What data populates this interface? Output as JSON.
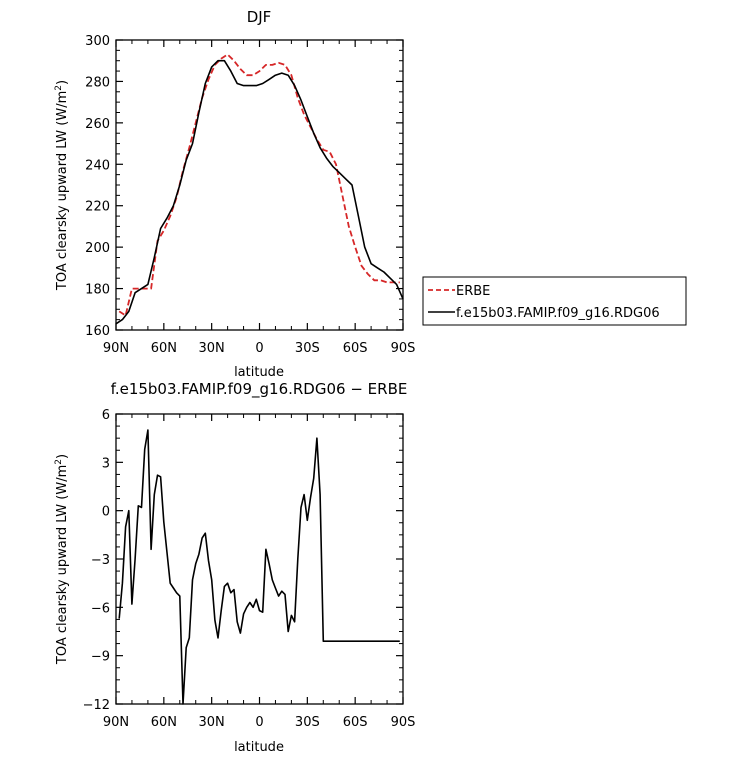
{
  "chart_data": [
    {
      "type": "line",
      "title": "DJF",
      "xlabel": "latitude",
      "ylabel": "TOA clearsky upward LW (W/m²)",
      "ylabel_parts": {
        "main": "TOA clearsky upward LW (W/m",
        "sup": "2",
        "close": ")"
      },
      "xlim": [
        90,
        -90
      ],
      "ylim": [
        160,
        300
      ],
      "xticks": [
        90,
        60,
        30,
        0,
        -30,
        -60,
        -90
      ],
      "xtick_labels": [
        "90N",
        "60N",
        "30N",
        "0",
        "30S",
        "60S",
        "90S"
      ],
      "yticks": [
        160,
        180,
        200,
        220,
        240,
        260,
        280,
        300
      ],
      "ytick_labels": [
        "160",
        "180",
        "200",
        "220",
        "240",
        "260",
        "280",
        "300"
      ],
      "legend_placement": "right",
      "series": [
        {
          "name": "ERBE",
          "color": "#d62728",
          "dash": "dashed",
          "x": [
            88,
            84,
            80,
            76,
            72,
            68,
            64,
            60,
            56,
            52,
            48,
            44,
            40,
            36,
            32,
            28,
            24,
            20,
            16,
            12,
            8,
            4,
            0,
            -4,
            -8,
            -12,
            -16,
            -20,
            -24,
            -28,
            -32,
            -36,
            -40,
            -44,
            -48,
            -52,
            -56,
            -60,
            -64,
            -68,
            -72,
            -76,
            -80,
            -84,
            -88
          ],
          "values": [
            169,
            167,
            180,
            180,
            180,
            180,
            203,
            208,
            215,
            224,
            237,
            248,
            260,
            272,
            281,
            288,
            291,
            293,
            290,
            286,
            283,
            283,
            285,
            288,
            288,
            289,
            288,
            283,
            272,
            264,
            258,
            252,
            247,
            246,
            240,
            225,
            210,
            200,
            191,
            187,
            184,
            184,
            183,
            183,
            183
          ]
        },
        {
          "name": "f.e15b03.FAMIP.f09_g16.RDG06",
          "color": "#000000",
          "dash": "solid",
          "x": [
            90,
            86,
            82,
            78,
            74,
            70,
            66,
            62,
            58,
            54,
            50,
            46,
            42,
            38,
            34,
            30,
            26,
            22,
            18,
            14,
            10,
            6,
            2,
            -2,
            -6,
            -10,
            -14,
            -18,
            -22,
            -26,
            -30,
            -34,
            -38,
            -42,
            -46,
            -50,
            -54,
            -58,
            -62,
            -66,
            -70,
            -74,
            -78,
            -82,
            -86,
            -90
          ],
          "values": [
            163,
            165,
            169,
            178,
            180,
            182,
            195,
            209,
            214,
            220,
            230,
            242,
            250,
            265,
            279,
            287,
            290,
            290,
            285,
            279,
            278,
            278,
            278,
            279,
            281,
            283,
            284,
            283,
            278,
            271,
            263,
            255,
            248,
            243,
            239,
            236,
            233,
            230,
            215,
            200,
            192,
            190,
            188,
            185,
            182,
            175
          ]
        }
      ]
    },
    {
      "type": "line",
      "title": "f.e15b03.FAMIP.f09_g16.RDG06 − ERBE",
      "xlabel": "latitude",
      "ylabel": "TOA clearsky upward LW (W/m²)",
      "ylabel_parts": {
        "main": "TOA clearsky upward LW (W/m",
        "sup": "2",
        "close": ")"
      },
      "xlim": [
        90,
        -90
      ],
      "ylim": [
        -12,
        6
      ],
      "xticks": [
        90,
        60,
        30,
        0,
        -30,
        -60,
        -90
      ],
      "xtick_labels": [
        "90N",
        "60N",
        "30N",
        "0",
        "30S",
        "60S",
        "90S"
      ],
      "yticks": [
        -12,
        -9,
        -6,
        -3,
        0,
        3,
        6
      ],
      "ytick_labels": [
        "−12",
        "−9",
        "−6",
        "−3",
        "0",
        "3",
        "6"
      ],
      "series": [
        {
          "name": "",
          "color": "#000000",
          "dash": "solid",
          "x": [
            88,
            86,
            84,
            82,
            80,
            78,
            76,
            74,
            72,
            70,
            68,
            66,
            64,
            62,
            60,
            58,
            56,
            54,
            52,
            50,
            48,
            46,
            44,
            42,
            40,
            38,
            36,
            34,
            32,
            30,
            28,
            26,
            24,
            22,
            20,
            18,
            16,
            14,
            12,
            10,
            8,
            6,
            4,
            2,
            0,
            -2,
            -4,
            -6,
            -8,
            -10,
            -12,
            -14,
            -16,
            -18,
            -20,
            -22,
            -24,
            -26,
            -28,
            -30,
            -32,
            -34,
            -36,
            -38,
            -40,
            -42,
            -44,
            -46,
            -48,
            -50,
            -52,
            -54,
            -56,
            -58,
            -60,
            -62,
            -64,
            -66,
            -68,
            -70,
            -72,
            -74,
            -76,
            -78,
            -80,
            -82,
            -84,
            -86,
            -88
          ],
          "values": [
            -6.7,
            -4.5,
            -1.0,
            0.0,
            -5.8,
            -3.0,
            0.3,
            0.2,
            3.8,
            5.0,
            -2.4,
            1.0,
            2.2,
            2.1,
            -0.7,
            -2.6,
            -4.5,
            -4.8,
            -5.1,
            -5.3,
            -12.0,
            -8.5,
            -7.9,
            -4.3,
            -3.3,
            -2.7,
            -1.7,
            -1.4,
            -3.1,
            -4.3,
            -6.8,
            -7.9,
            -6.2,
            -4.7,
            -4.5,
            -5.1,
            -4.9,
            -6.9,
            -7.6,
            -6.4,
            -6.0,
            -5.7,
            -6.0,
            -5.5,
            -6.2,
            -6.3,
            -2.4,
            -3.3,
            -4.3,
            -4.8,
            -5.3,
            -5.0,
            -5.2,
            -7.5,
            -6.5,
            -6.9,
            -3.0,
            0.2,
            1.0,
            -0.6,
            0.8,
            2.0,
            4.5,
            1.0,
            -8.1,
            -8.1,
            -8.1,
            -8.1,
            -8.1,
            -8.1,
            -8.1,
            -8.1,
            -8.1,
            -8.1,
            -8.1,
            -8.1,
            -8.1,
            -8.1,
            -8.1,
            -8.1,
            -8.1,
            -8.1,
            -8.1,
            -8.1,
            -8.1,
            -8.1,
            -8.1,
            -8.1,
            -8.1
          ]
        }
      ]
    }
  ]
}
